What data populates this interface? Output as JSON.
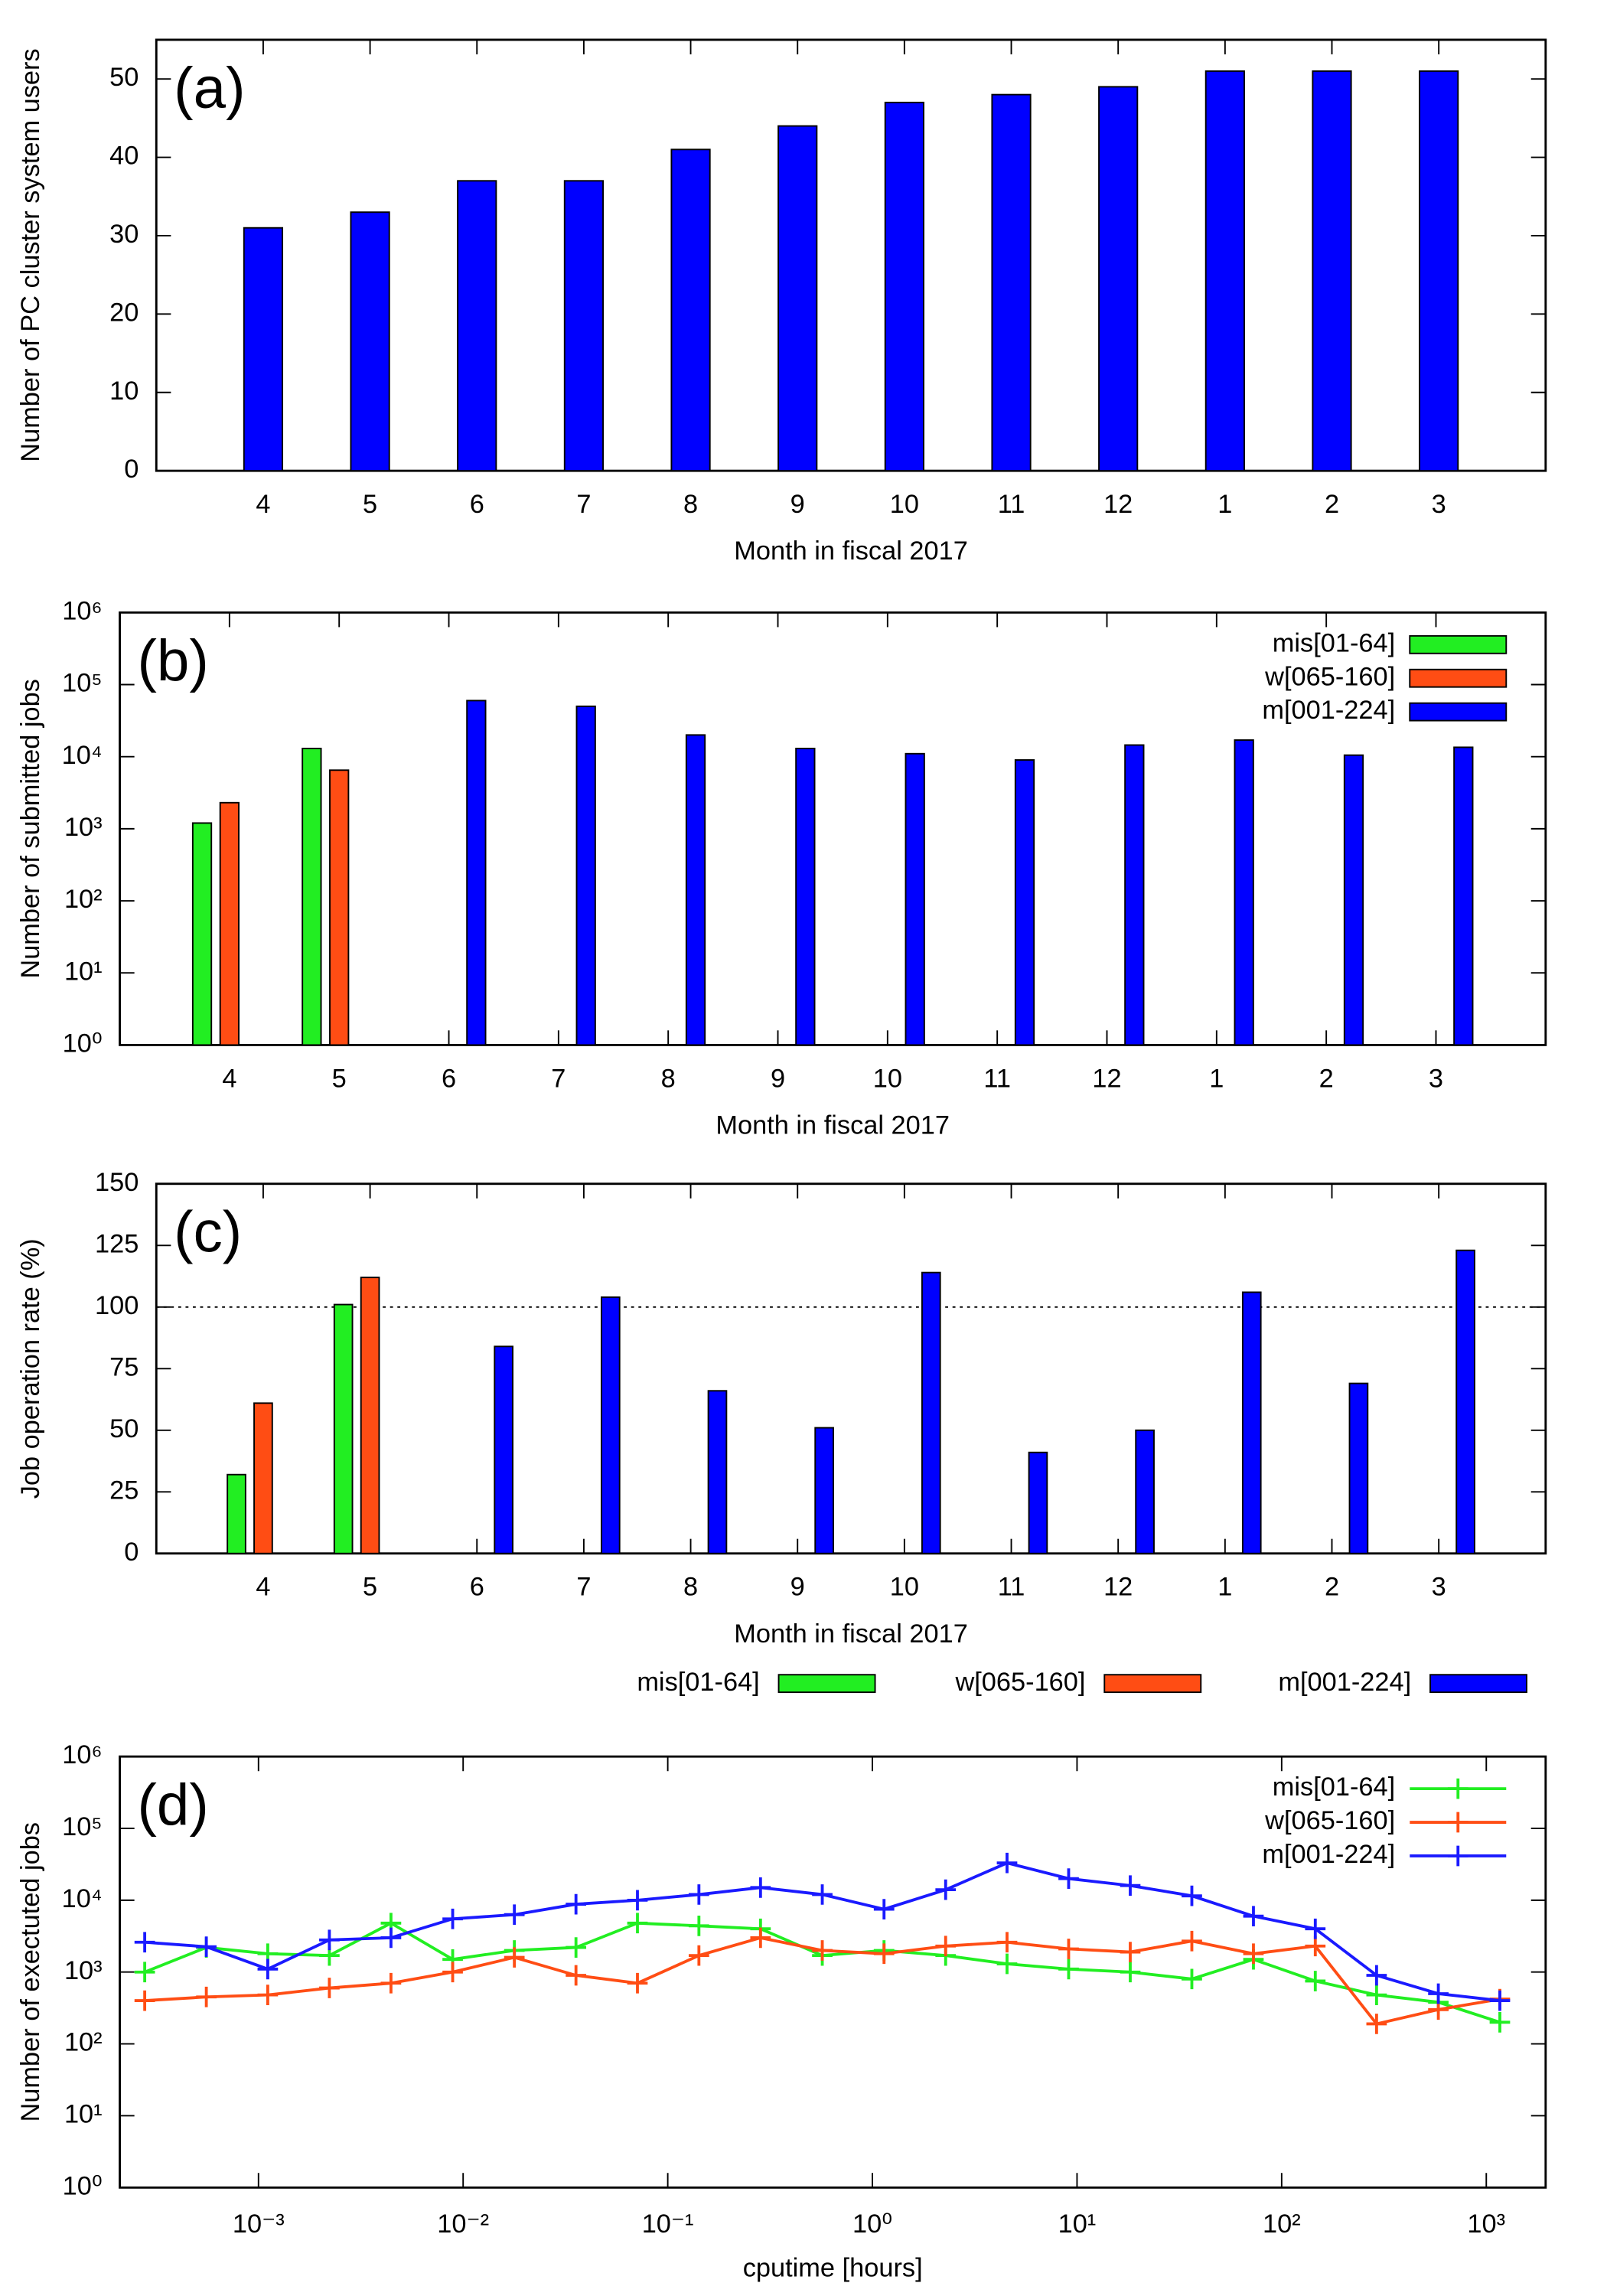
{
  "chart_data": [
    {
      "type": "bar",
      "panel_label": "(a)",
      "ylabel": "Number of PC cluster system users",
      "xlabel": "Month in fiscal 2017",
      "categories": [
        "4",
        "5",
        "6",
        "7",
        "8",
        "9",
        "10",
        "11",
        "12",
        "1",
        "2",
        "3"
      ],
      "series": [
        {
          "name": null,
          "color": "#0000ff",
          "values": [
            31,
            33,
            37,
            37,
            41,
            44,
            47,
            48,
            49,
            51,
            51,
            51
          ]
        }
      ],
      "ylim": [
        0,
        55
      ],
      "yticks": [
        0,
        10,
        20,
        30,
        40,
        50
      ],
      "ylog": false,
      "grid": false
    },
    {
      "type": "bar",
      "panel_label": "(b)",
      "ylabel": "Number of submitted jobs",
      "xlabel": "Month in fiscal 2017",
      "categories": [
        "4",
        "5",
        "6",
        "7",
        "8",
        "9",
        "10",
        "11",
        "12",
        "1",
        "2",
        "3"
      ],
      "series": [
        {
          "name": "mis[01-64]",
          "color": "#22ee22",
          "values": [
            1200,
            13000,
            null,
            null,
            null,
            null,
            null,
            null,
            null,
            null,
            null,
            null
          ]
        },
        {
          "name": "w[065-160]",
          "color": "#ff4d14",
          "values": [
            2300,
            6500,
            null,
            null,
            null,
            null,
            null,
            null,
            null,
            null,
            null,
            null
          ]
        },
        {
          "name": "m[001-224]",
          "color": "#0000ff",
          "values": [
            null,
            null,
            60000,
            50000,
            20000,
            13000,
            11000,
            9000,
            14500,
            17000,
            10500,
            13500
          ]
        }
      ],
      "ylim": [
        1,
        1000000
      ],
      "ylog": true,
      "yticks": [
        {
          "value": 1,
          "label": "10⁰"
        },
        {
          "value": 10,
          "label": "10¹"
        },
        {
          "value": 100,
          "label": "10²"
        },
        {
          "value": 1000,
          "label": "10³"
        },
        {
          "value": 10000,
          "label": "10⁴"
        },
        {
          "value": 100000,
          "label": "10⁵"
        },
        {
          "value": 1000000,
          "label": "10⁶"
        }
      ],
      "legend": "upper right",
      "grid": false
    },
    {
      "type": "bar",
      "panel_label": "(c)",
      "ylabel": "Job operation rate (%)",
      "xlabel": "Month in fiscal 2017",
      "categories": [
        "4",
        "5",
        "6",
        "7",
        "8",
        "9",
        "10",
        "11",
        "12",
        "1",
        "2",
        "3"
      ],
      "series": [
        {
          "name": "mis[01-64]",
          "color": "#22ee22",
          "values": [
            32,
            101,
            null,
            null,
            null,
            null,
            null,
            null,
            null,
            null,
            null,
            null
          ]
        },
        {
          "name": "w[065-160]",
          "color": "#ff4d14",
          "values": [
            61,
            112,
            null,
            null,
            null,
            null,
            null,
            null,
            null,
            null,
            null,
            null
          ]
        },
        {
          "name": "m[001-224]",
          "color": "#0000ff",
          "values": [
            null,
            null,
            84,
            104,
            66,
            51,
            114,
            41,
            50,
            106,
            69,
            123
          ]
        }
      ],
      "ylim": [
        0,
        150
      ],
      "yticks": [
        0,
        25,
        50,
        75,
        100,
        125,
        150
      ],
      "ylog": false,
      "reference_line": 100,
      "legend": "below",
      "grid": false
    },
    {
      "type": "line",
      "panel_label": "(d)",
      "ylabel": "Number of exectuted jobs",
      "xlabel": "cputime [hours]",
      "x": [
        0.000278,
        0.000556,
        0.00111,
        0.00222,
        0.00444,
        0.00889,
        0.0178,
        0.0356,
        0.0711,
        0.142,
        0.284,
        0.569,
        1.14,
        2.28,
        4.55,
        9.1,
        18.2,
        36.4,
        72.8,
        146,
        291,
        583,
        1165
      ],
      "series": [
        {
          "name": "mis[01-64]",
          "color": "#22ee22",
          "values": [
            1000,
            2200,
            1800,
            1700,
            4800,
            1500,
            2000,
            2200,
            4800,
            4400,
            4000,
            1700,
            2000,
            1700,
            1300,
            1100,
            1000,
            800,
            1500,
            750,
            480,
            380,
            200
          ]
        },
        {
          "name": "w[065-160]",
          "color": "#ff4d14",
          "values": [
            400,
            450,
            480,
            600,
            700,
            1000,
            1600,
            900,
            700,
            1700,
            3000,
            2000,
            1800,
            2300,
            2600,
            2100,
            1900,
            2700,
            1800,
            2300,
            190,
            300,
            420
          ]
        },
        {
          "name": "m[001-224]",
          "color": "#1a1aff",
          "values": [
            2600,
            2250,
            1100,
            2800,
            3000,
            5500,
            6300,
            8800,
            10000,
            12000,
            15000,
            12000,
            7500,
            14000,
            33000,
            20000,
            16000,
            11500,
            6000,
            4000,
            900,
            500,
            400
          ]
        }
      ],
      "xlim": [
        0.00021,
        1950
      ],
      "xlog": true,
      "ylim": [
        1,
        1000000
      ],
      "ylog": true,
      "xticks": [
        {
          "value": 0.001,
          "label": "10⁻³"
        },
        {
          "value": 0.01,
          "label": "10⁻²"
        },
        {
          "value": 0.1,
          "label": "10⁻¹"
        },
        {
          "value": 1,
          "label": "10⁰"
        },
        {
          "value": 10,
          "label": "10¹"
        },
        {
          "value": 100,
          "label": "10²"
        },
        {
          "value": 1000,
          "label": "10³"
        }
      ],
      "yticks": [
        {
          "value": 1,
          "label": "10⁰"
        },
        {
          "value": 10,
          "label": "10¹"
        },
        {
          "value": 100,
          "label": "10²"
        },
        {
          "value": 1000,
          "label": "10³"
        },
        {
          "value": 10000,
          "label": "10⁴"
        },
        {
          "value": 100000,
          "label": "10⁵"
        },
        {
          "value": 1000000,
          "label": "10⁶"
        }
      ],
      "legend": "upper right",
      "markers": "+",
      "grid": false
    }
  ]
}
